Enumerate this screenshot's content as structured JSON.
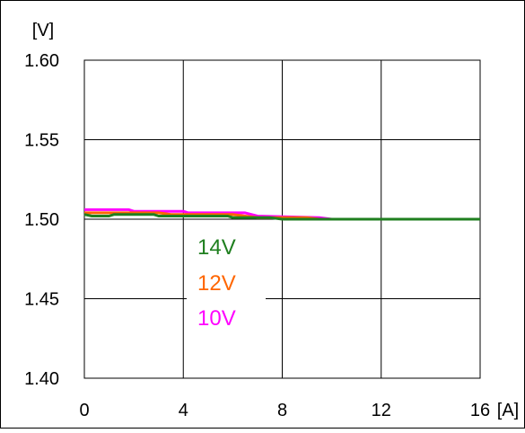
{
  "chart_data": {
    "type": "line",
    "title": "",
    "xlabel": "",
    "ylabel": "",
    "x_unit": "[A]",
    "y_unit": "[V]",
    "xlim": [
      0,
      16
    ],
    "ylim": [
      1.4,
      1.6
    ],
    "x_ticks": [
      "0",
      "4",
      "8",
      "12",
      "16"
    ],
    "y_ticks": [
      "1.60",
      "1.55",
      "1.50",
      "1.45",
      "1.40"
    ],
    "grid": true,
    "legend_position": "center-left",
    "series": [
      {
        "name": "10V",
        "color": "#ff00ff",
        "x": [
          0,
          1.8,
          2.0,
          4.0,
          4.2,
          6.5,
          7.0,
          9.5,
          10.0,
          16
        ],
        "y": [
          1.506,
          1.506,
          1.505,
          1.505,
          1.504,
          1.504,
          1.502,
          1.501,
          1.5,
          1.5
        ]
      },
      {
        "name": "12V",
        "color": "#ff6600",
        "x": [
          0,
          0.4,
          3.0,
          3.5,
          6.0,
          7.0,
          9.0,
          9.5,
          16
        ],
        "y": [
          1.504,
          1.504,
          1.504,
          1.503,
          1.503,
          1.501,
          1.501,
          1.5,
          1.5
        ]
      },
      {
        "name": "14V",
        "color": "#1f7f1f",
        "x": [
          0,
          0.3,
          1.0,
          1.2,
          2.8,
          3.0,
          5.8,
          6.0,
          7.5,
          8.0,
          16
        ],
        "y": [
          1.503,
          1.502,
          1.502,
          1.503,
          1.503,
          1.502,
          1.502,
          1.501,
          1.501,
          1.5,
          1.5
        ]
      }
    ],
    "legend_order": [
      "14V",
      "12V",
      "10V"
    ]
  }
}
